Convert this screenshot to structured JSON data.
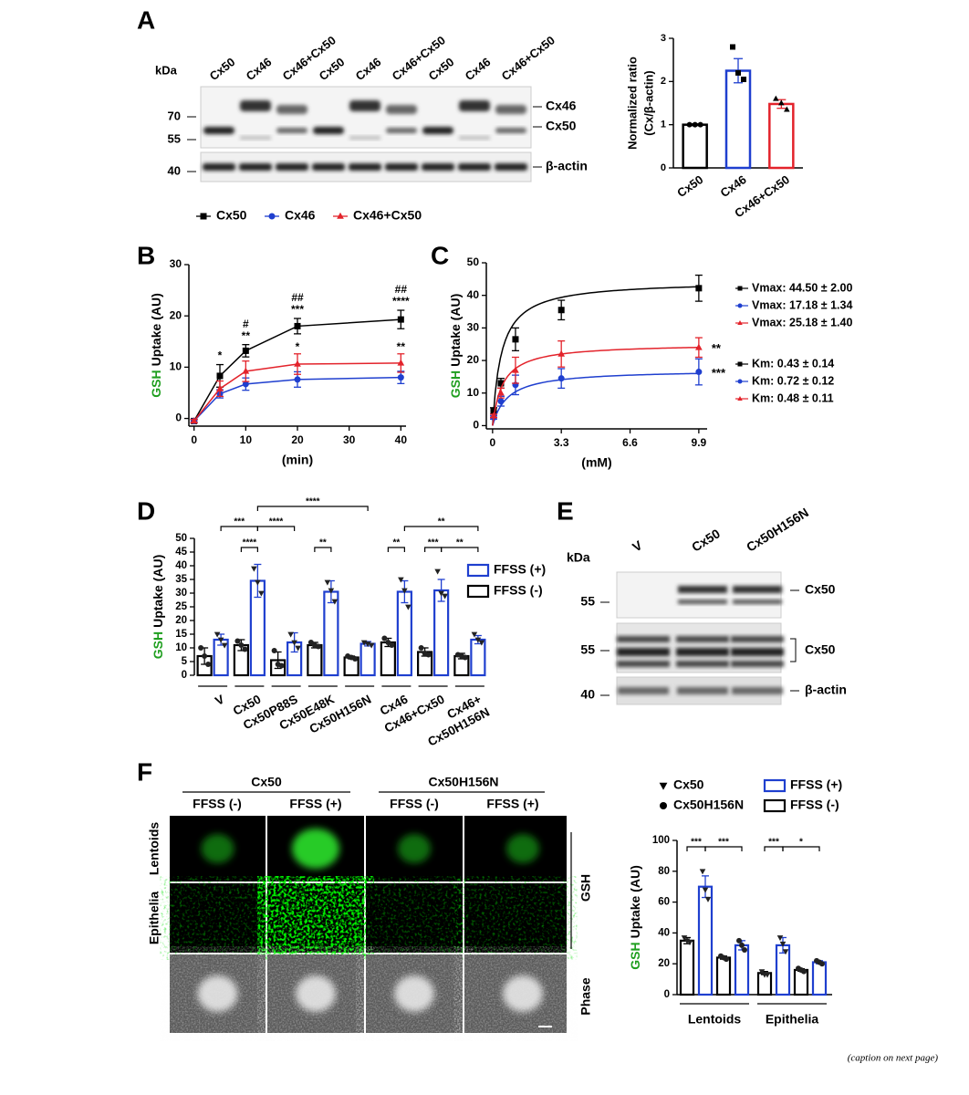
{
  "panels": [
    "A",
    "B",
    "C",
    "D",
    "E",
    "F"
  ],
  "blot_a": {
    "unit": "kDa",
    "lanes": [
      "Cx50",
      "Cx46",
      "Cx46+Cx50",
      "Cx50",
      "Cx46",
      "Cx46+Cx50",
      "Cx50",
      "Cx46",
      "Cx46+Cx50"
    ],
    "markers": [
      70,
      55,
      40
    ],
    "bands": [
      "Cx46",
      "Cx50",
      "β-actin"
    ]
  },
  "blot_e": {
    "unit": "kDa",
    "lanes": [
      "V",
      "Cx50",
      "Cx50H156N"
    ],
    "markers": [
      55,
      55,
      40
    ],
    "bands": [
      "Cx50",
      "Cx50",
      "β-actin"
    ]
  },
  "micrograph_f": {
    "genotypes": [
      "Cx50",
      "Cx50H156N"
    ],
    "conditions": [
      "FFSS (-)",
      "FFSS (+)",
      "FFSS (-)",
      "FFSS (+)"
    ],
    "rows": [
      "Lentoids",
      "Epithelia"
    ],
    "channels": [
      "GSH",
      "Phase"
    ]
  },
  "chart_data": [
    {
      "type": "bar",
      "ylabel": [
        "Normalized ratio",
        "(Cx/β-actin)"
      ],
      "categories": [
        "Cx50",
        "Cx46",
        "Cx46+Cx50"
      ],
      "values": [
        1,
        2.25,
        1.48
      ],
      "errors": [
        0.02,
        0.28,
        0.1
      ],
      "points": [
        [
          1,
          1,
          1
        ],
        [
          2.8,
          2.2,
          2.05
        ],
        [
          1.6,
          1.5,
          1.35
        ]
      ],
      "colors": [
        "#000000",
        "#1f3fcf",
        "#e3232b"
      ],
      "markers": [
        "circle",
        "square",
        "triangle"
      ],
      "ylim": [
        0,
        3
      ],
      "yticks": [
        0,
        1,
        2,
        3
      ]
    },
    {
      "type": "line",
      "ylabel_parts": [
        "GSH",
        "Uptake (AU)"
      ],
      "ylabel_colors": [
        "#1e9e1e",
        "#000000"
      ],
      "xlabel": "(min)",
      "x": [
        0,
        5,
        10,
        20,
        40
      ],
      "xlim": [
        -1,
        41
      ],
      "xticks": [
        0,
        10,
        20,
        30,
        40
      ],
      "ylim": [
        -1.5,
        30
      ],
      "yticks": [
        0,
        10,
        20,
        30
      ],
      "legend": "top",
      "series": [
        {
          "name": "Cx50",
          "color": "#000000",
          "marker": "square",
          "values": [
            -0.5,
            8.3,
            13.2,
            18,
            19.3
          ],
          "errors": [
            0.3,
            2.2,
            1.2,
            1.5,
            1.8
          ],
          "sig": [
            null,
            "*",
            "**",
            "***",
            "****"
          ]
        },
        {
          "name": "Cx46",
          "color": "#1f3fcf",
          "marker": "circle",
          "values": [
            -0.5,
            4.8,
            6.7,
            7.6,
            8.0
          ],
          "errors": [
            0.3,
            0.8,
            1.2,
            1.5,
            1.2
          ],
          "sig": [
            null,
            null,
            "#",
            "##",
            "##"
          ]
        },
        {
          "name": "Cx46+Cx50",
          "color": "#e3232b",
          "marker": "triangle",
          "values": [
            -0.5,
            5.8,
            9.2,
            10.6,
            10.8
          ],
          "errors": [
            0.3,
            1.5,
            2,
            2,
            1.8
          ],
          "sig": [
            null,
            null,
            "*",
            "*",
            "**"
          ]
        }
      ]
    },
    {
      "type": "scatter-fit",
      "ylabel_parts": [
        "GSH",
        "Uptake (AU)"
      ],
      "ylabel_colors": [
        "#1e9e1e",
        "#000000"
      ],
      "xlabel": "(mM)",
      "x": [
        0.05,
        0.4,
        1.1,
        3.3,
        9.9
      ],
      "xlim": [
        -0.3,
        10.3
      ],
      "xticks": [
        0,
        3.3,
        6.6,
        9.9
      ],
      "ylim": [
        -1,
        50
      ],
      "yticks": [
        0,
        10,
        20,
        30,
        40,
        50
      ],
      "series": [
        {
          "name": "Cx50",
          "color": "#000000",
          "marker": "square",
          "values": [
            4.5,
            13,
            26.5,
            35.5,
            42.2
          ],
          "errors": [
            1,
            1.5,
            3.5,
            3,
            4
          ],
          "fit": {
            "vmax": 44.5,
            "km": 0.43
          },
          "vmax_label": "Vmax: 44.50 ± 2.00",
          "km_label": "Km: 0.43 ± 0.14",
          "sig": null
        },
        {
          "name": "Cx46",
          "color": "#1f3fcf",
          "marker": "circle",
          "values": [
            2.5,
            7.5,
            12.5,
            14.5,
            16.5
          ],
          "errors": [
            0.5,
            1.5,
            3,
            3,
            4
          ],
          "fit": {
            "vmax": 17.18,
            "km": 0.72
          },
          "vmax_label": "Vmax: 17.18 ± 1.34",
          "km_label": "Km: 0.72 ± 0.12",
          "sig": "***"
        },
        {
          "name": "Cx46+Cx50",
          "color": "#e3232b",
          "marker": "triangle",
          "values": [
            3,
            10,
            17,
            22,
            24
          ],
          "errors": [
            0.5,
            1.5,
            4,
            4,
            3
          ],
          "fit": {
            "vmax": 25.18,
            "km": 0.48
          },
          "vmax_label": "Vmax: 25.18 ± 1.40",
          "km_label": "Km: 0.48 ± 0.11",
          "sig": "**"
        }
      ]
    },
    {
      "type": "grouped-bar",
      "ylabel_parts": [
        "GSH",
        "Uptake (AU)"
      ],
      "ylabel_colors": [
        "#1e9e1e",
        "#000000"
      ],
      "categories": [
        "V",
        "Cx50",
        "Cx50P88S",
        "Cx50E48K",
        "Cx50H156N",
        "Cx46",
        "Cx46+Cx50",
        [
          "Cx46+",
          "Cx50H156N"
        ]
      ],
      "ylim": [
        0,
        50
      ],
      "yticks": [
        0,
        5,
        10,
        15,
        20,
        25,
        30,
        35,
        40,
        45,
        50
      ],
      "legend": "right",
      "series": [
        {
          "name": "FFSS (+)",
          "color": "#1f3fcf",
          "marker": "triangle-down",
          "values": [
            13,
            34.5,
            12,
            30.5,
            11.5,
            30.5,
            31,
            13
          ],
          "errors": [
            2,
            6,
            3.5,
            4,
            0.8,
            4,
            4,
            1.5
          ],
          "points": [
            [
              15,
              13,
              11
            ],
            [
              39,
              34,
              30
            ],
            [
              15,
              12,
              10
            ],
            [
              34,
              31,
              27
            ],
            [
              12,
              11.5,
              11
            ],
            [
              35,
              31,
              25
            ],
            [
              38,
              30,
              29
            ],
            [
              15,
              13,
              12
            ]
          ]
        },
        {
          "name": "FFSS (-)",
          "color": "#000000",
          "marker": "circle",
          "values": [
            7,
            11,
            5.5,
            11,
            6.5,
            12,
            8.5,
            7
          ],
          "errors": [
            3,
            2,
            3,
            1,
            0.5,
            1.5,
            1.5,
            1
          ],
          "points": [
            [
              10,
              7,
              4
            ],
            [
              12.5,
              11,
              9.5
            ],
            [
              9,
              4,
              3.5
            ],
            [
              12,
              11,
              10.5
            ],
            [
              7,
              6.5,
              6
            ],
            [
              13.5,
              12,
              11
            ],
            [
              10,
              8,
              7.5
            ],
            [
              7.5,
              7,
              6.5
            ]
          ]
        }
      ],
      "brackets": [
        "***",
        "****",
        "****",
        "****",
        "**",
        "**",
        "***",
        "**",
        "**"
      ]
    },
    {
      "type": "grouped-bar",
      "ylabel_parts": [
        "GSH",
        "Uptake (AU)"
      ],
      "ylabel_colors": [
        "#1e9e1e",
        "#000000"
      ],
      "groups": [
        "Lentoids",
        "Epithelia"
      ],
      "marker_legend": [
        {
          "name": "Cx50",
          "marker": "triangle-down"
        },
        {
          "name": "Cx50H156N",
          "marker": "circle"
        }
      ],
      "ylim": [
        0,
        100
      ],
      "yticks": [
        0,
        20,
        40,
        60,
        80,
        100
      ],
      "series": [
        {
          "name": "FFSS (+)",
          "color": "#1f3fcf",
          "values": [
            70,
            32,
            32,
            21
          ],
          "errors": [
            7,
            3,
            5,
            1
          ],
          "points": [
            [
              80,
              68,
              62
            ],
            [
              35,
              32,
              29
            ],
            [
              37,
              33,
              28
            ],
            [
              22,
              21,
              20
            ]
          ]
        },
        {
          "name": "FFSS (-)",
          "color": "#000000",
          "values": [
            35,
            24,
            14,
            16
          ],
          "errors": [
            2,
            1,
            1,
            0.8
          ],
          "points": [
            [
              37,
              35,
              34
            ],
            [
              25,
              24,
              23
            ],
            [
              15,
              13,
              13
            ],
            [
              17,
              16,
              15
            ]
          ]
        }
      ],
      "brackets": [
        "***",
        "***",
        "***",
        "*"
      ]
    }
  ],
  "footer": "(caption on next page)"
}
